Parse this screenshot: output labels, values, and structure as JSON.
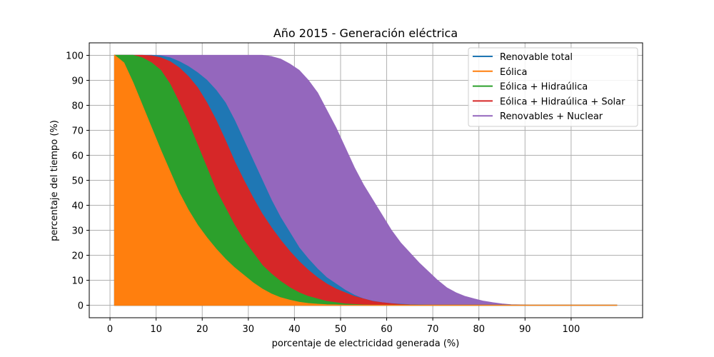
{
  "chart_data": {
    "type": "area",
    "title": "Año 2015 - Generación eléctrica",
    "xlabel": "porcentaje de electricidad generada (%)",
    "ylabel": "percentaje del tiempo (%)",
    "xlim": [
      -4.5,
      115.5
    ],
    "ylim": [
      -5,
      105
    ],
    "xticks": [
      0,
      10,
      20,
      30,
      40,
      50,
      60,
      70,
      80,
      90,
      100
    ],
    "yticks": [
      0,
      10,
      20,
      30,
      40,
      50,
      60,
      70,
      80,
      90,
      100
    ],
    "grid": true,
    "legend_position": "top-right",
    "x": [
      1,
      3,
      5,
      7,
      9,
      11,
      13,
      15,
      17,
      19,
      21,
      23,
      25,
      27,
      29,
      31,
      33,
      35,
      37,
      39,
      41,
      43,
      45,
      47,
      49,
      51,
      53,
      55,
      57,
      59,
      61,
      63,
      65,
      67,
      69,
      71,
      73,
      75,
      77,
      79,
      81,
      83,
      85,
      87,
      89,
      91,
      95,
      100,
      105,
      110
    ],
    "series": [
      {
        "name": "Renovable total",
        "color": "#1f77b4",
        "values": [
          100,
          100,
          100,
          100,
          100,
          99.8,
          99,
          97.5,
          95.5,
          93,
          90,
          86,
          81,
          74,
          66,
          58,
          50,
          42,
          35,
          29,
          23,
          18.5,
          14.5,
          11,
          8.5,
          6,
          4,
          2.5,
          1.6,
          1,
          0.6,
          0.4,
          0.2,
          0.1,
          0,
          0,
          0,
          0,
          0,
          0,
          0,
          0,
          0,
          0,
          0,
          0,
          0,
          0,
          0,
          0
        ]
      },
      {
        "name": "Eólica",
        "color": "#ff7f0e",
        "values": [
          100,
          97,
          89,
          80,
          71,
          62,
          53.5,
          45,
          38,
          32,
          27,
          22.5,
          18.5,
          15,
          12,
          9,
          6.5,
          4.5,
          3,
          2,
          1.2,
          0.7,
          0.4,
          0.2,
          0.1,
          0,
          0,
          0,
          0,
          0,
          0,
          0,
          0,
          0,
          0,
          0,
          0,
          0,
          0,
          0,
          0,
          0,
          0,
          0,
          0,
          0,
          0,
          0,
          0,
          0
        ]
      },
      {
        "name": "Eólica + Hidraúlica",
        "color": "#2ca02c",
        "values": [
          100,
          100,
          100,
          99,
          97,
          94,
          88.5,
          81,
          73,
          64,
          55,
          46,
          39,
          32,
          26,
          21,
          16,
          12.5,
          9.5,
          7,
          5,
          3.5,
          2.5,
          1.5,
          1,
          0.5,
          0.3,
          0.1,
          0,
          0,
          0,
          0,
          0,
          0,
          0,
          0,
          0,
          0,
          0,
          0,
          0,
          0,
          0,
          0,
          0,
          0,
          0,
          0,
          0,
          0
        ]
      },
      {
        "name": "Eólica + Hidraúlica + Solar",
        "color": "#d62728",
        "values": [
          100,
          100,
          100,
          100,
          99.8,
          99,
          97.5,
          95,
          91.5,
          87,
          81,
          74,
          66,
          57.5,
          50,
          43,
          36.5,
          31,
          26,
          21.5,
          17.5,
          14,
          11,
          8.5,
          6.5,
          5,
          3.5,
          2.5,
          1.5,
          1,
          0.6,
          0.3,
          0.1,
          0,
          0,
          0,
          0,
          0,
          0,
          0,
          0,
          0,
          0,
          0,
          0,
          0,
          0,
          0,
          0,
          0
        ]
      },
      {
        "name": "Renovables + Nuclear",
        "color": "#9467bd",
        "values": [
          100,
          100,
          100,
          100,
          100,
          100,
          100,
          100,
          100,
          100,
          100,
          100,
          100,
          100,
          100,
          100,
          100,
          99.5,
          98.5,
          96.5,
          94,
          90,
          85,
          78,
          71,
          63,
          55,
          48,
          42,
          36,
          30,
          25,
          21,
          17,
          13.5,
          10,
          7,
          5,
          3.5,
          2.5,
          1.6,
          1,
          0.5,
          0.2,
          0.1,
          0,
          0,
          0,
          0,
          0
        ]
      }
    ]
  }
}
